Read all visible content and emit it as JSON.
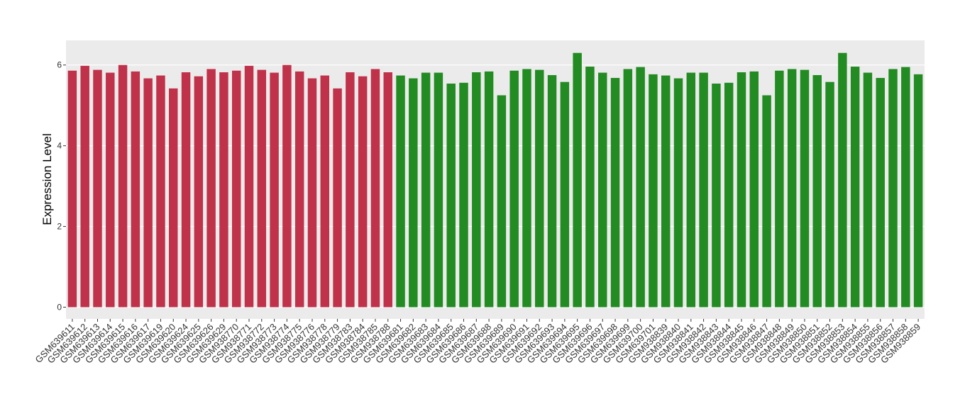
{
  "chart_data": {
    "type": "bar",
    "y_label": "Expression Level",
    "categories": [
      "GSM639611",
      "GSM639612",
      "GSM639613",
      "GSM639614",
      "GSM639615",
      "GSM639616",
      "GSM639617",
      "GSM639619",
      "GSM639620",
      "GSM639624",
      "GSM639625",
      "GSM639626",
      "GSM639629",
      "GSM938770",
      "GSM938771",
      "GSM938772",
      "GSM938773",
      "GSM938774",
      "GSM938775",
      "GSM938776",
      "GSM938778",
      "GSM938779",
      "GSM938783",
      "GSM938784",
      "GSM938785",
      "GSM938788",
      "GSM639681",
      "GSM639682",
      "GSM639683",
      "GSM639684",
      "GSM639685",
      "GSM639686",
      "GSM639687",
      "GSM639688",
      "GSM639689",
      "GSM639690",
      "GSM639691",
      "GSM639692",
      "GSM639693",
      "GSM639694",
      "GSM639695",
      "GSM639696",
      "GSM639697",
      "GSM639698",
      "GSM639699",
      "GSM639700",
      "GSM639701",
      "GSM938839",
      "GSM938840",
      "GSM938841",
      "GSM938842",
      "GSM938843",
      "GSM938844",
      "GSM938845",
      "GSM938846",
      "GSM938847",
      "GSM938848",
      "GSM938849",
      "GSM938850",
      "GSM938851",
      "GSM938852",
      "GSM938853",
      "GSM938854",
      "GSM938855",
      "GSM938856",
      "GSM938857",
      "GSM938858",
      "GSM938859"
    ],
    "series": [
      {
        "color": "#c0314a",
        "values": [
          5.86,
          5.98,
          5.88,
          5.81,
          6.0,
          5.84,
          5.67,
          5.74,
          5.42,
          5.82,
          5.72,
          5.9,
          5.82,
          5.86,
          5.98,
          5.88,
          5.81,
          6.0,
          5.84,
          5.67,
          5.74,
          5.42,
          5.82,
          5.72,
          5.9,
          5.82,
          null,
          null,
          null,
          null,
          null,
          null,
          null,
          null,
          null,
          null,
          null,
          null,
          null,
          null,
          null,
          null,
          null,
          null,
          null,
          null,
          null,
          null,
          null,
          null,
          null,
          null,
          null,
          null,
          null,
          null,
          null,
          null,
          null,
          null,
          null,
          null,
          null,
          null,
          null,
          null,
          null,
          null
        ]
      },
      {
        "color": "#228b22",
        "values": [
          null,
          null,
          null,
          null,
          null,
          null,
          null,
          null,
          null,
          null,
          null,
          null,
          null,
          null,
          null,
          null,
          null,
          null,
          null,
          null,
          null,
          null,
          null,
          null,
          null,
          null,
          5.74,
          5.67,
          5.81,
          5.81,
          5.54,
          5.56,
          5.82,
          5.84,
          5.25,
          5.86,
          5.9,
          5.88,
          5.75,
          5.58,
          6.3,
          5.96,
          5.81,
          5.68,
          5.9,
          5.95,
          5.77,
          5.74,
          5.67,
          5.81,
          5.81,
          5.54,
          5.56,
          5.82,
          5.84,
          5.25,
          5.86,
          5.9,
          5.88,
          5.75,
          5.58,
          6.3,
          5.96,
          5.81,
          5.68,
          5.9,
          5.95,
          5.77
        ]
      }
    ],
    "ylim": [
      -0.29,
      6.61
    ],
    "yticks": [
      0,
      2,
      4,
      6
    ],
    "grid": true
  }
}
